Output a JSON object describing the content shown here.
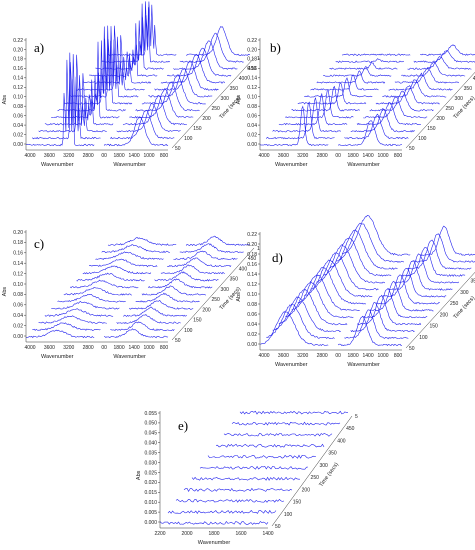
{
  "chart_data": [
    {
      "type": "line",
      "panel_label": "a)",
      "ylabel": "Abs",
      "xlabel_left": "Wavenumber",
      "xlabel_right": "Wavenumber",
      "zlabel": "Time (secs)",
      "y_ticks": [
        "0.00",
        "0.02",
        "0.04",
        "0.06",
        "0.08",
        "0.10",
        "0.12",
        "0.14",
        "0.16",
        "0.18",
        "0.20",
        "0.22"
      ],
      "x_ticks_left": [
        "4000",
        "3600",
        "3200",
        "2800"
      ],
      "x_ticks_right": [
        "00",
        "1800",
        "1400",
        "1000",
        "800"
      ],
      "z_ticks": [
        "50",
        "100",
        "150",
        "200",
        "250",
        "300",
        "350",
        "400",
        "450",
        "1"
      ],
      "ylim": [
        0,
        0.22
      ],
      "features": "sharp spikes near 3000 cm-1 and a broad band near 1400 cm-1"
    },
    {
      "type": "line",
      "panel_label": "b)",
      "ylabel": "Abs",
      "xlabel_left": "Wavenumber",
      "xlabel_right": "Wavenumber",
      "zlabel": "Time (secs)",
      "y_ticks": [
        "0.00",
        "0.02",
        "0.04",
        "0.06",
        "0.08",
        "0.10",
        "0.12",
        "0.14",
        "0.16",
        "0.18",
        "0.20",
        "0.22"
      ],
      "x_ticks_left": [
        "4000",
        "3600",
        "3200",
        "2800"
      ],
      "x_ticks_right": [
        "00",
        "1800",
        "1400",
        "1000",
        "800"
      ],
      "z_ticks": [
        "50",
        "100",
        "150",
        "200",
        "250",
        "300",
        "350",
        "400",
        "450",
        "1"
      ],
      "ylim": [
        0,
        0.22
      ],
      "features": "moderate peaks near 3000 cm-1 and 1400 cm-1"
    },
    {
      "type": "line",
      "panel_label": "c)",
      "ylabel": "Abs",
      "xlabel_left": "Wavenumber",
      "xlabel_right": "Wavenumber",
      "zlabel": "Time (secs)",
      "y_ticks": [
        "0.00",
        "0.02",
        "0.04",
        "0.06",
        "0.08",
        "0.10",
        "0.12",
        "0.14",
        "0.16",
        "0.18",
        "0.20"
      ],
      "x_ticks_left": [
        "4000",
        "3600",
        "3200",
        "2800"
      ],
      "x_ticks_right": [
        "00",
        "1800",
        "1400",
        "1000",
        "800"
      ],
      "z_ticks": [
        "50",
        "100",
        "150",
        "200",
        "250",
        "300",
        "350",
        "400",
        "450",
        "1"
      ],
      "ylim": [
        0,
        0.2
      ],
      "features": "weak features, noisy baseline"
    },
    {
      "type": "line",
      "panel_label": "d)",
      "ylabel": "Abs",
      "xlabel_left": "Wavenumber",
      "xlabel_right": "Wavenumber",
      "zlabel": "Time (secs)",
      "y_ticks": [
        "0.00",
        "0.02",
        "0.04",
        "0.06",
        "0.08",
        "0.10",
        "0.12",
        "0.14",
        "0.16",
        "0.18",
        "0.20",
        "0.22"
      ],
      "x_ticks_left": [
        "4000",
        "3600",
        "3200",
        "2800"
      ],
      "x_ticks_right": [
        "00",
        "1800",
        "1400",
        "1000",
        "800"
      ],
      "z_ticks": [
        "50",
        "100",
        "150",
        "200",
        "250",
        "300",
        "350",
        "400",
        "450"
      ],
      "ylim": [
        0,
        0.22
      ],
      "features": "broad bands near 3400 cm-1 and 1600 cm-1"
    },
    {
      "type": "line",
      "panel_label": "e)",
      "ylabel": "Abs",
      "xlabel": "Wavenumber",
      "zlabel": "Time (secs)",
      "y_ticks": [
        "0.000",
        "0.005",
        "0.010",
        "0.015",
        "0.020",
        "0.025",
        "0.030",
        "0.035",
        "0.040",
        "0.045",
        "0.050",
        "0.055"
      ],
      "x_ticks": [
        "2200",
        "2000",
        "1800",
        "1600",
        "1400"
      ],
      "z_ticks": [
        "50",
        "100",
        "150",
        "200",
        "250",
        "300",
        "350",
        "400",
        "450",
        "5"
      ],
      "ylim": [
        0,
        0.055
      ],
      "features": "flat noisy traces"
    }
  ]
}
